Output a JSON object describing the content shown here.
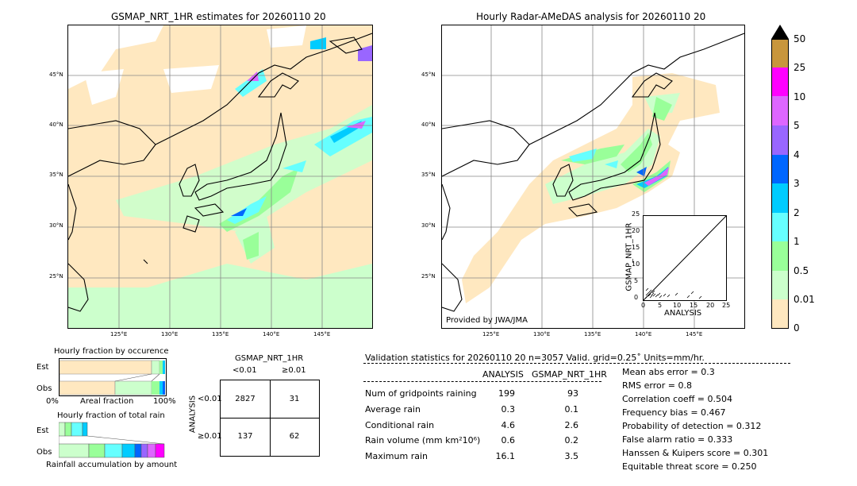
{
  "left_map": {
    "title": "GSMAP_NRT_1HR estimates for 20260110 20",
    "lat_labels": [
      "45°N",
      "40°N",
      "35°N",
      "30°N",
      "25°N"
    ],
    "lon_labels": [
      "125°E",
      "130°E",
      "135°E",
      "140°E",
      "145°E"
    ]
  },
  "right_map": {
    "title": "Hourly Radar-AMeDAS analysis for 20260110 20",
    "lat_labels": [
      "45°N",
      "40°N",
      "35°N",
      "30°N",
      "25°N"
    ],
    "lon_labels": [
      "125°E",
      "130°E",
      "135°E",
      "140°E",
      "145°E"
    ],
    "credit": "Provided by JWA/JMA"
  },
  "scatter": {
    "xlabel": "ANALYSIS",
    "ylabel": "GSMAP_NRT_1HR",
    "x_ticks": [
      "0",
      "5",
      "10",
      "15",
      "20",
      "25"
    ],
    "y_ticks": [
      "0",
      "5",
      "10",
      "15",
      "20",
      "25"
    ]
  },
  "colorbar": {
    "labels": [
      "50",
      "25",
      "10",
      "5",
      "4",
      "3",
      "2",
      "1",
      "0.5",
      "0.01",
      "0"
    ],
    "colors": [
      "#c8963c",
      "#ff00ff",
      "#dd66ff",
      "#9966ff",
      "#0066ff",
      "#00ccff",
      "#66ffff",
      "#99ff99",
      "#ccffcc",
      "#ffe8c0"
    ]
  },
  "fraction_occurrence": {
    "title": "Hourly fraction by occurence",
    "rows": [
      "Est",
      "Obs"
    ],
    "axis_left": "0%",
    "axis_mid": "Areal fraction",
    "axis_right": "100%"
  },
  "fraction_total": {
    "title": "Hourly fraction of total rain",
    "rows": [
      "Est",
      "Obs"
    ],
    "caption": "Rainfall accumulation by amount"
  },
  "contingency": {
    "title": "GSMAP_NRT_1HR",
    "col_headers": [
      "<0.01",
      "≥0.01"
    ],
    "row_axis": "ANALYSIS",
    "row_headers": [
      "<0.01",
      "≥0.01"
    ],
    "cells": [
      [
        "2827",
        "31"
      ],
      [
        "137",
        "62"
      ]
    ]
  },
  "validation": {
    "header": "Validation statistics for 20260110 20  n=3057 Valid. grid=0.25˚ Units=mm/hr.",
    "col_analysis": "ANALYSIS",
    "col_gsmap": "GSMAP_NRT_1HR",
    "rows": [
      {
        "label": "Num of gridpoints raining",
        "analysis": "199",
        "gsmap": "93"
      },
      {
        "label": "Average rain",
        "analysis": "0.3",
        "gsmap": "0.1"
      },
      {
        "label": "Conditional rain",
        "analysis": "4.6",
        "gsmap": "2.6"
      },
      {
        "label": "Rain volume (mm km²10⁶)",
        "analysis": "0.6",
        "gsmap": "0.2"
      },
      {
        "label": "Maximum rain",
        "analysis": "16.1",
        "gsmap": "3.5"
      }
    ],
    "scores": [
      "Mean abs error =    0.3",
      "RMS error =    0.8",
      "Correlation coeff =  0.504",
      "Frequency bias =  0.467",
      "Probability of detection =  0.312",
      "False alarm ratio =  0.333",
      "Hanssen & Kuipers score =  0.301",
      "Equitable threat score =  0.250"
    ]
  }
}
